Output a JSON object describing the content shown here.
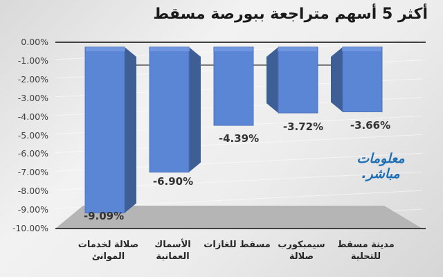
{
  "title": "أكثر 5 أسهم متراجعة ببورصة مسقط",
  "logo": {
    "line1": "معلومات",
    "line2": "مباشر."
  },
  "y_axis": {
    "ticks": [
      "0.00%",
      "-1.00%",
      "-2.00%",
      "-3.00%",
      "-4.00%",
      "-5.00%",
      "-6.00%",
      "-7.00%",
      "-8.00%",
      "-9.00%",
      "-10.00%"
    ]
  },
  "bars": [
    {
      "label_line1": "صلالة لخدمات",
      "label_line2": "الموانئ",
      "value": -9.09,
      "value_label": "-9.09%"
    },
    {
      "label_line1": "الأسماك",
      "label_line2": "العمانية",
      "value": -6.9,
      "value_label": "-6.90%"
    },
    {
      "label_line1": "مسقط للغازات",
      "label_line2": "",
      "value": -4.39,
      "value_label": "-4.39%"
    },
    {
      "label_line1": "سيمبكورب",
      "label_line2": "صلالة",
      "value": -3.72,
      "value_label": "-3.72%"
    },
    {
      "label_line1": "مدينة مسقط",
      "label_line2": "للتحلية",
      "value": -3.66,
      "value_label": "-3.66%"
    }
  ],
  "colors": {
    "bar_front": "#5b86d6",
    "bar_side": "#3e5f96",
    "bar_top": "#7fa1e6",
    "floor": "#b5b5b5",
    "axis": "#404040"
  },
  "chart_data": {
    "type": "bar",
    "title": "أكثر 5 أسهم متراجعة ببورصة مسقط",
    "categories": [
      "صلالة لخدمات الموانئ",
      "الأسماك العمانية",
      "مسقط للغازات",
      "سيمبكورب صلالة",
      "مدينة مسقط للتحلية"
    ],
    "values": [
      -9.09,
      -6.9,
      -4.39,
      -3.72,
      -3.66
    ],
    "data_labels": [
      "-9.09%",
      "-6.90%",
      "-4.39%",
      "-3.72%",
      "-3.66%"
    ],
    "xlabel": "",
    "ylabel": "",
    "ylim": [
      -10,
      0
    ],
    "y_ticks": [
      "0.00%",
      "-1.00%",
      "-2.00%",
      "-3.00%",
      "-4.00%",
      "-5.00%",
      "-6.00%",
      "-7.00%",
      "-8.00%",
      "-9.00%",
      "-10.00%"
    ],
    "grid": true,
    "legend": "none",
    "style": "3d-column"
  }
}
